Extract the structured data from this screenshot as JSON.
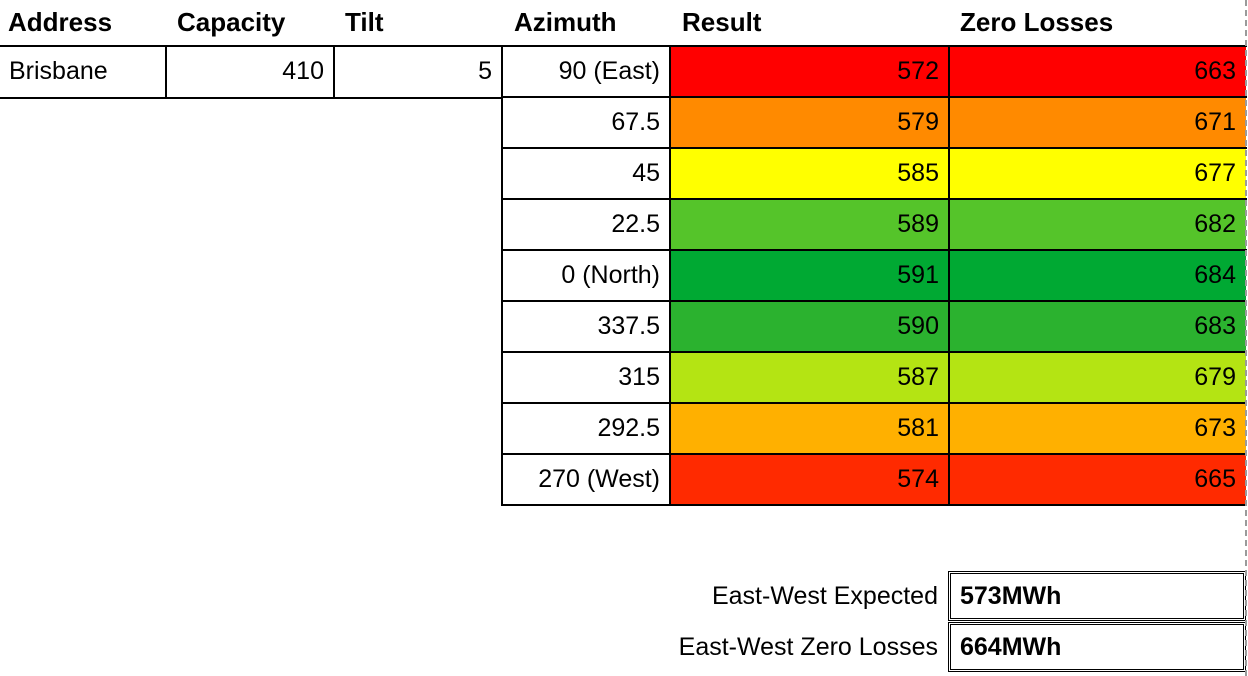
{
  "headers": {
    "address": "Address",
    "capacity": "Capacity",
    "tilt": "Tilt",
    "azimuth": "Azimuth",
    "result": "Result",
    "zero_losses": "Zero Losses"
  },
  "site": {
    "address": "Brisbane",
    "capacity": "410",
    "tilt": "5"
  },
  "rows": [
    {
      "azimuth": "90 (East)",
      "result": "572",
      "zero": "663",
      "color": "#ff0000"
    },
    {
      "azimuth": "67.5",
      "result": "579",
      "zero": "671",
      "color": "#ff8a00"
    },
    {
      "azimuth": "45",
      "result": "585",
      "zero": "677",
      "color": "#ffff00"
    },
    {
      "azimuth": "22.5",
      "result": "589",
      "zero": "682",
      "color": "#55c42a"
    },
    {
      "azimuth": "0 (North)",
      "result": "591",
      "zero": "684",
      "color": "#00a933"
    },
    {
      "azimuth": "337.5",
      "result": "590",
      "zero": "683",
      "color": "#2bb22f"
    },
    {
      "azimuth": "315",
      "result": "587",
      "zero": "679",
      "color": "#b4e413"
    },
    {
      "azimuth": "292.5",
      "result": "581",
      "zero": "673",
      "color": "#ffb000"
    },
    {
      "azimuth": "270 (West)",
      "result": "574",
      "zero": "665",
      "color": "#ff2a00"
    }
  ],
  "summary": {
    "ew_expected_label": "East-West Expected",
    "ew_expected_value": "573MWh",
    "ew_zero_label": "East-West Zero Losses",
    "ew_zero_value": "664MWh"
  }
}
